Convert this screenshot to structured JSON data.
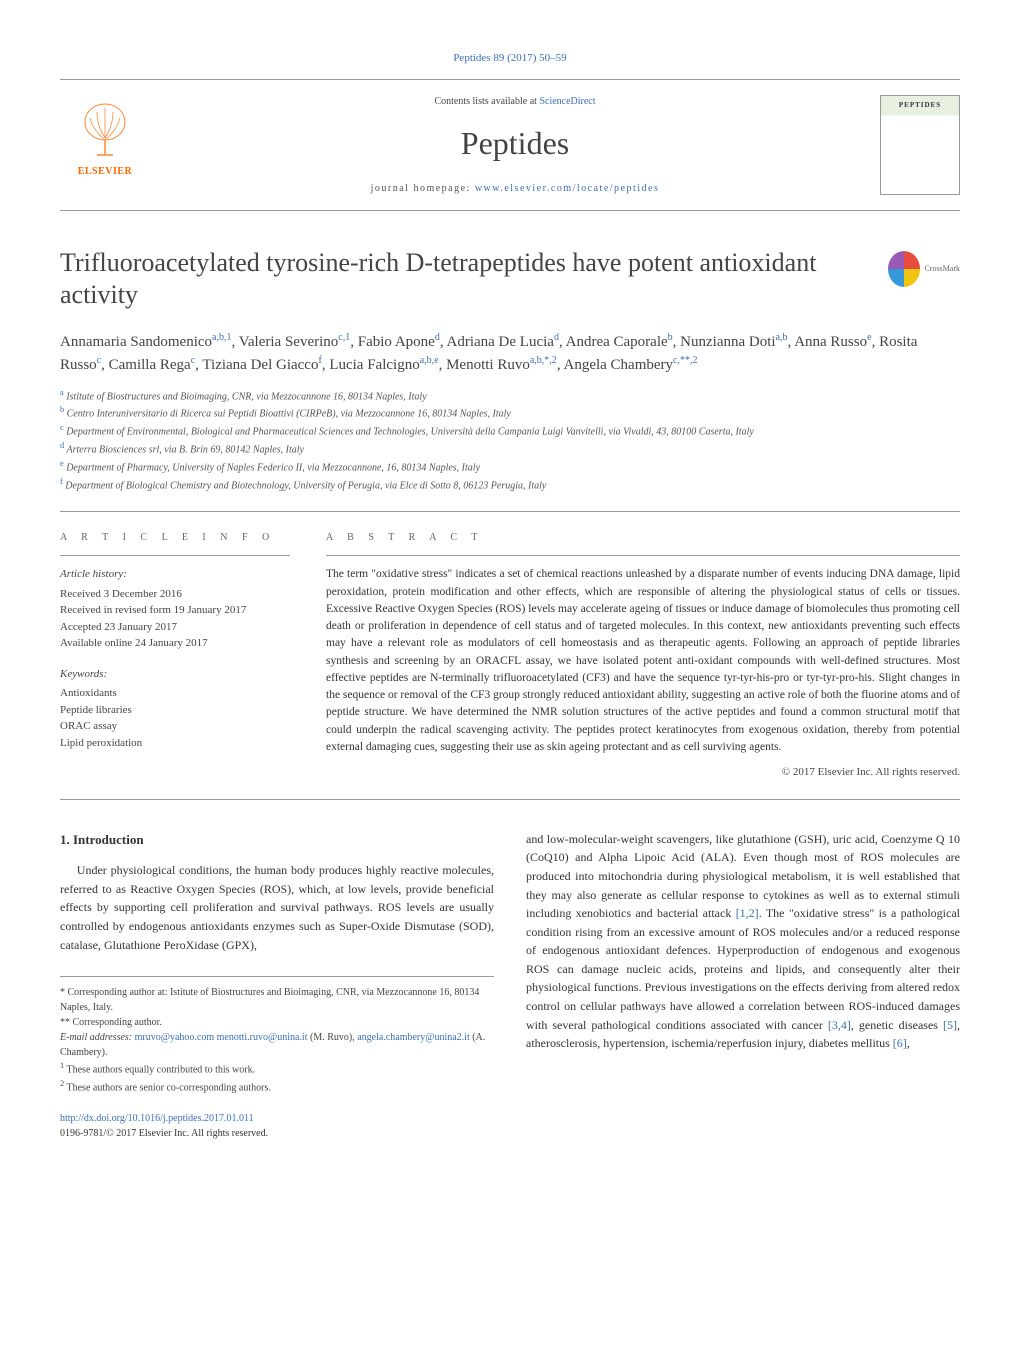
{
  "header_citation": "Peptides 89 (2017) 50–59",
  "masthead": {
    "contents_prefix": "Contents lists available at ",
    "contents_link": "ScienceDirect",
    "journal_name": "Peptides",
    "homepage_prefix": "journal homepage: ",
    "homepage_url": "www.elsevier.com/locate/peptides",
    "publisher": "ELSEVIER",
    "cover_title": "PEPTIDES"
  },
  "crossmark": "CrossMark",
  "title": "Trifluoroacetylated tyrosine-rich D-tetrapeptides have potent antioxidant activity",
  "authors_html": "Annamaria Sandomenico<sup>a,b,1</sup>, Valeria Severino<sup>c,1</sup>, Fabio Apone<sup>d</sup>, Adriana De Lucia<sup>d</sup>, Andrea Caporale<sup>b</sup>, Nunzianna Doti<sup>a,b</sup>, Anna Russo<sup>e</sup>, Rosita Russo<sup>c</sup>, Camilla Rega<sup>c</sup>, Tiziana Del Giacco<sup>f</sup>, Lucia Falcigno<sup>a,b,e</sup>, Menotti Ruvo<sup>a,b,*,2</sup>, Angela Chambery<sup>c,**,2</sup>",
  "affiliations": [
    {
      "sup": "a",
      "text": "Istitute of Biostructures and Bioimaging, CNR, via Mezzocannone 16, 80134 Naples, Italy"
    },
    {
      "sup": "b",
      "text": "Centro Interuniversitario di Ricerca sui Peptidi Bioattivi (CIRPeB), via Mezzocannone 16, 80134 Naples, Italy"
    },
    {
      "sup": "c",
      "text": "Department of Environmental, Biological and Pharmaceutical Sciences and Technologies, Università della Campania Luigi Vanvitelli, via Vivaldi, 43, 80100 Caserta, Italy"
    },
    {
      "sup": "d",
      "text": "Arterra Biosciences srl, via B. Brin 69, 80142 Naples, Italy"
    },
    {
      "sup": "e",
      "text": "Department of Pharmacy, University of Naples Federico II, via Mezzocannone, 16, 80134 Naples, Italy"
    },
    {
      "sup": "f",
      "text": "Department of Biological Chemistry and Biotechnology, University of Perugia, via Elce di Sotto 8, 06123 Perugia, Italy"
    }
  ],
  "info": {
    "article_info_head": "a r t i c l e   i n f o",
    "abstract_head": "a b s t r a c t",
    "history_head": "Article history:",
    "history": [
      "Received 3 December 2016",
      "Received in revised form 19 January 2017",
      "Accepted 23 January 2017",
      "Available online 24 January 2017"
    ],
    "kw_head": "Keywords:",
    "keywords": [
      "Antioxidants",
      "Peptide libraries",
      "ORAC assay",
      "Lipid peroxidation"
    ]
  },
  "abstract": "The term \"oxidative stress\" indicates a set of chemical reactions unleashed by a disparate number of events inducing DNA damage, lipid peroxidation, protein modification and other effects, which are responsible of altering the physiological status of cells or tissues. Excessive Reactive Oxygen Species (ROS) levels may accelerate ageing of tissues or induce damage of biomolecules thus promoting cell death or proliferation in dependence of cell status and of targeted molecules. In this context, new antioxidants preventing such effects may have a relevant role as modulators of cell homeostasis and as therapeutic agents. Following an approach of peptide libraries synthesis and screening by an ORACFL assay, we have isolated potent anti-oxidant compounds with well-defined structures. Most effective peptides are N-terminally trifluoroacetylated (CF3) and have the sequence tyr-tyr-his-pro or tyr-tyr-pro-his. Slight changes in the sequence or removal of the CF3 group strongly reduced antioxidant ability, suggesting an active role of both the fluorine atoms and of peptide structure. We have determined the NMR solution structures of the active peptides and found a common structural motif that could underpin the radical scavenging activity. The peptides protect keratinocytes from exogenous oxidation, thereby from potential external damaging cues, suggesting their use as skin ageing protectant and as cell surviving agents.",
  "copyright": "© 2017 Elsevier Inc. All rights reserved.",
  "section1_head": "1. Introduction",
  "body_left": "Under physiological conditions, the human body produces highly reactive molecules, referred to as Reactive Oxygen Species (ROS), which, at low levels, provide beneficial effects by supporting cell proliferation and survival pathways. ROS levels are usually controlled by endogenous antioxidants enzymes such as Super-Oxide Dismutase (SOD), catalase, Glutathione PeroXidase (GPX),",
  "body_right": "and low-molecular-weight scavengers, like glutathione (GSH), uric acid, Coenzyme Q 10 (CoQ10) and Alpha Lipoic Acid (ALA). Even though most of ROS molecules are produced into mitochondria during physiological metabolism, it is well established that they may also generate as cellular response to cytokines as well as to external stimuli including xenobiotics and bacterial attack [1,2]. The \"oxidative stress\" is a pathological condition rising from an excessive amount of ROS molecules and/or a reduced response of endogenous antioxidant defences. Hyperproduction of endogenous and exogenous ROS can damage nucleic acids, proteins and lipids, and consequently alter their physiological functions. Previous investigations on the effects deriving from altered redox control on cellular pathways have allowed a correlation between ROS-induced damages with several pathological conditions associated with cancer [3,4], genetic diseases [5], atherosclerosis, hypertension, ischemia/reperfusion injury, diabetes mellitus [6],",
  "footnotes": {
    "corr1": "* Corresponding author at: Istitute of Biostructures and Bioimaging, CNR, via Mezzocannone 16, 80134 Naples, Italy.",
    "corr2": "** Corresponding author.",
    "emails_label": "E-mail addresses:",
    "emails": [
      {
        "addr": "mruvo@yahoo.com",
        "who": ""
      },
      {
        "addr": "menotti.ruvo@unina.it",
        "who": "(M. Ruvo),"
      },
      {
        "addr": "angela.chambery@unina2.it",
        "who": "(A. Chambery)."
      }
    ],
    "note1": "1 These authors equally contributed to this work.",
    "note2": "2 These authors are senior co-corresponding authors."
  },
  "doi": {
    "url": "http://dx.doi.org/10.1016/j.peptides.2017.01.011",
    "issn_line": "0196-9781/© 2017 Elsevier Inc. All rights reserved."
  },
  "colors": {
    "link": "#3b6fb6",
    "elsevier_orange": "#ff6600",
    "text": "#333333",
    "rule": "#999999"
  }
}
